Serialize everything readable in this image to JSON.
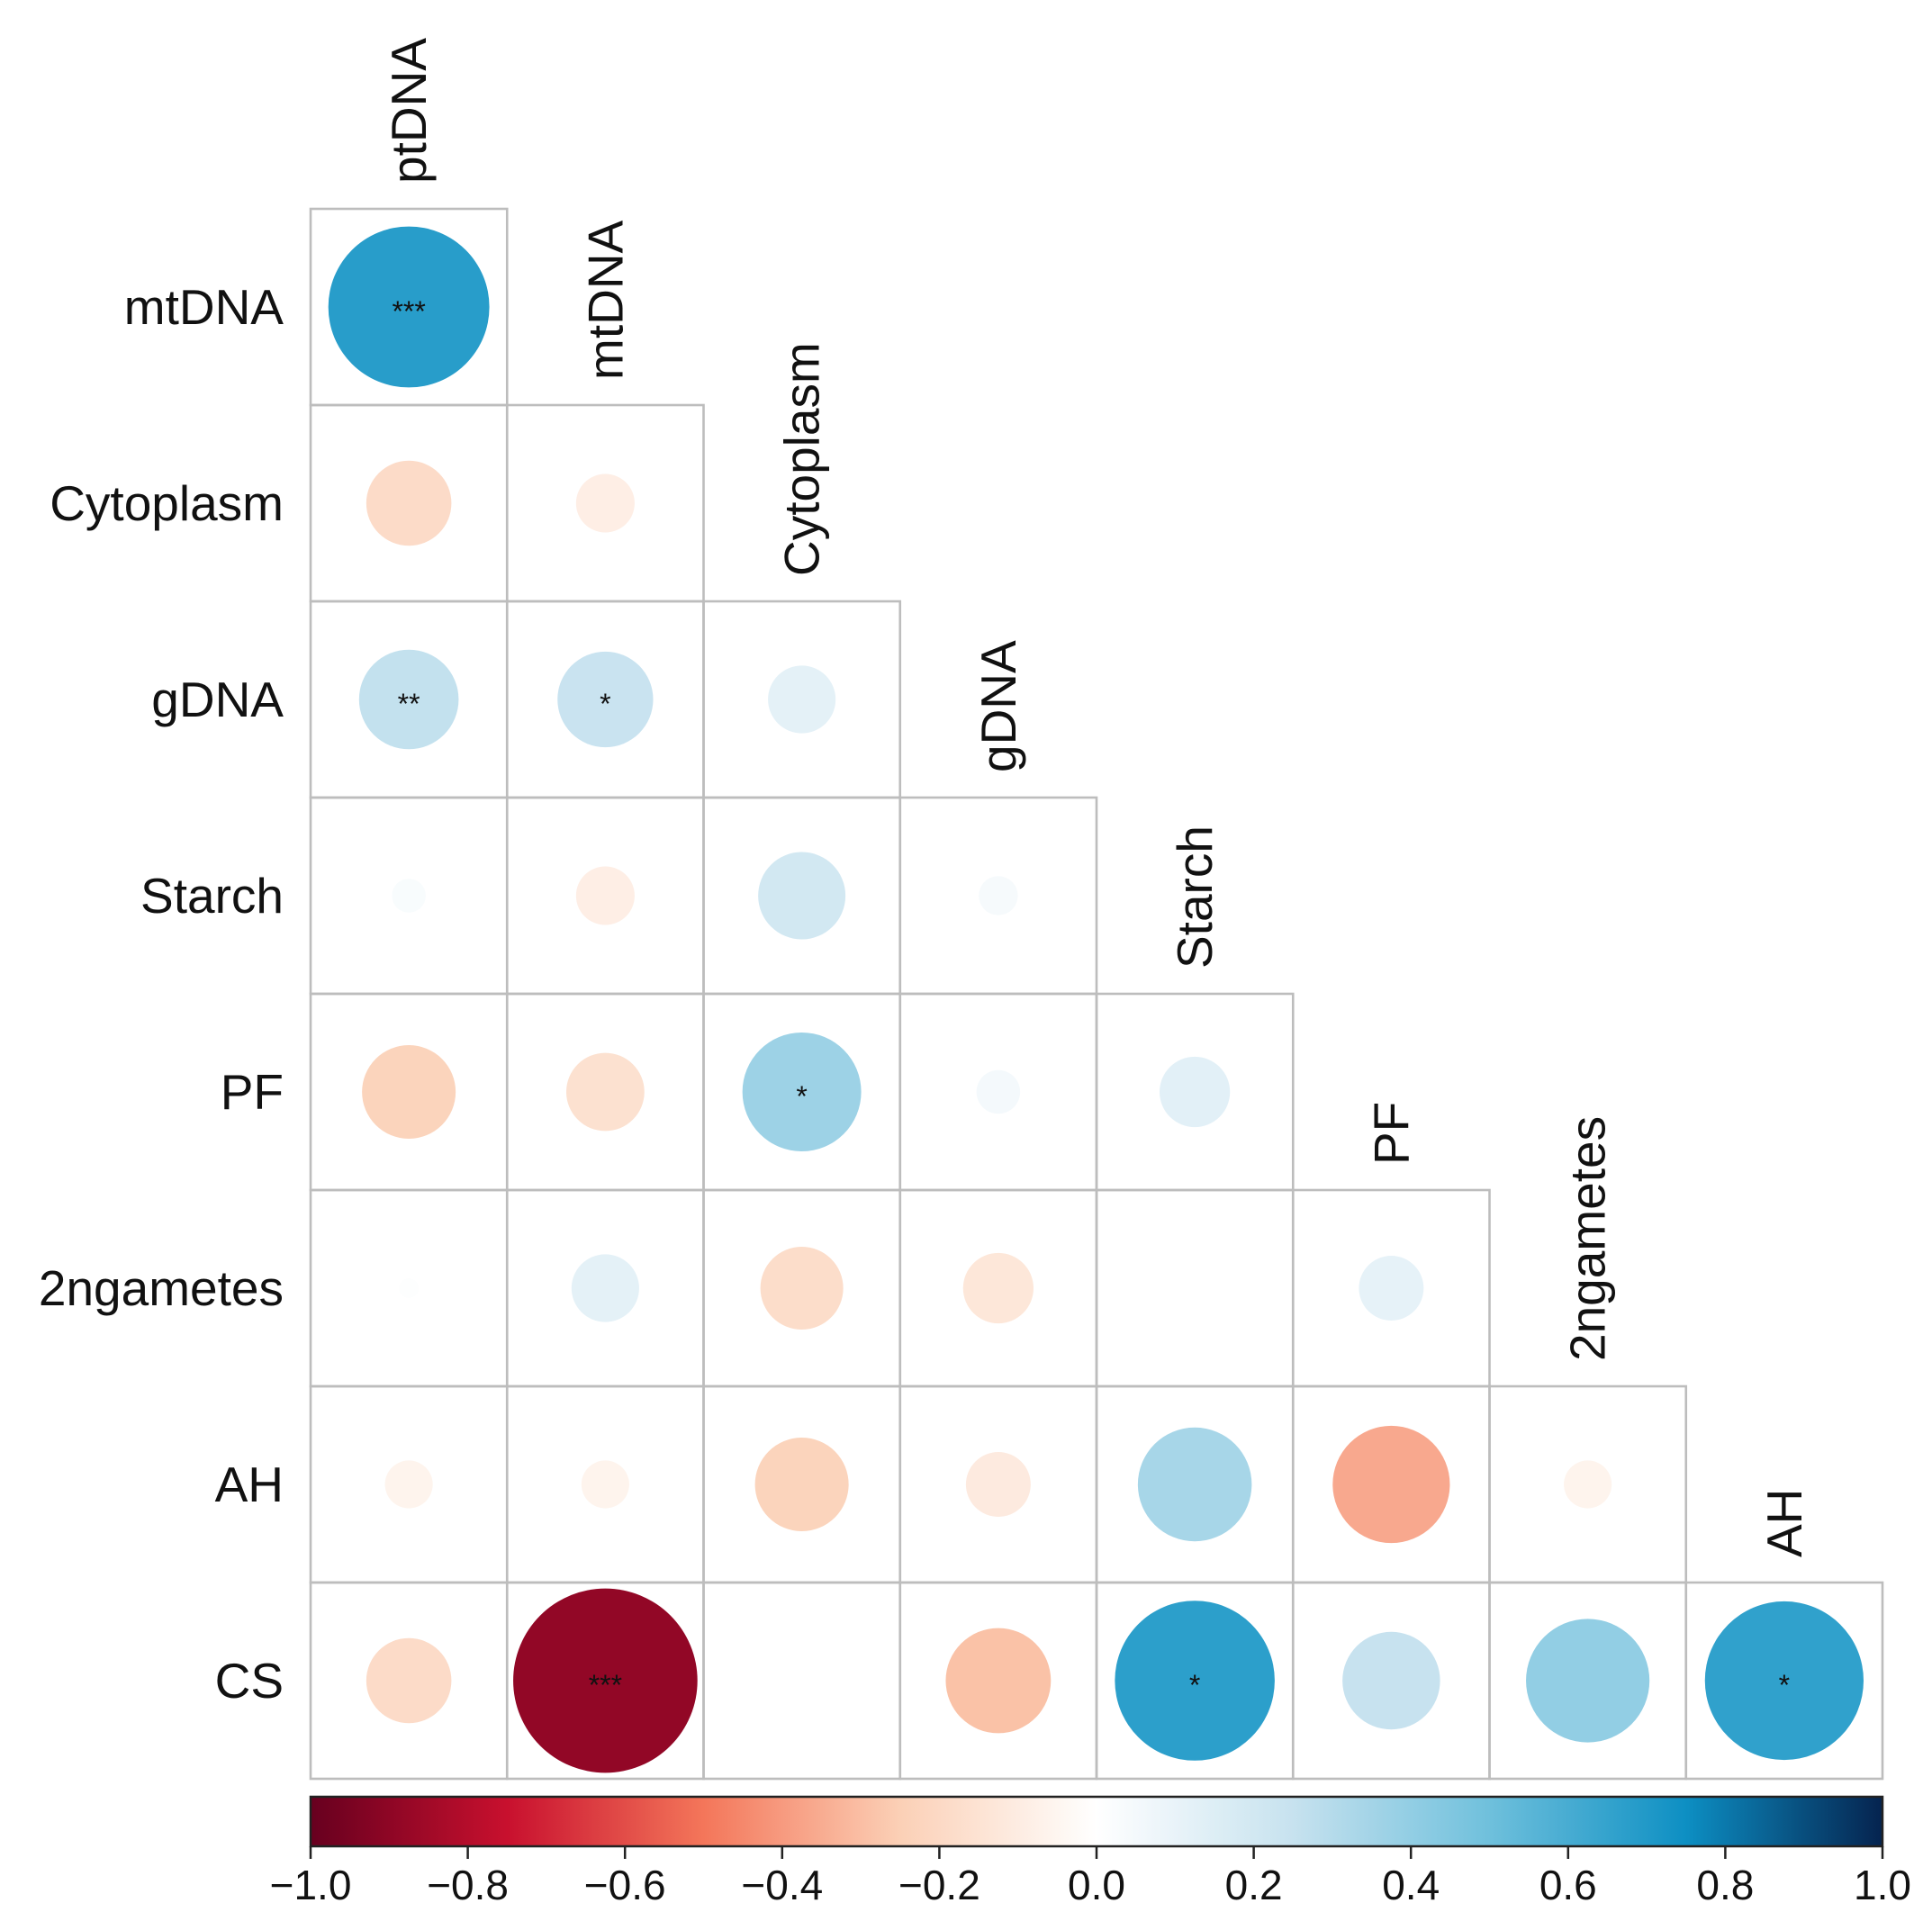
{
  "chart_data": {
    "type": "heatmap",
    "style": "correlation circle plot, lower triangle",
    "variables": [
      "ptDNA",
      "mtDNA",
      "Cytoplasm",
      "gDNA",
      "Starch",
      "PF",
      "2ngametes",
      "AH",
      "CS"
    ],
    "row_labels": [
      "mtDNA",
      "Cytoplasm",
      "gDNA",
      "Starch",
      "PF",
      "2ngametes",
      "AH",
      "CS"
    ],
    "column_labels": [
      "ptDNA",
      "mtDNA",
      "Cytoplasm",
      "gDNA",
      "Starch",
      "PF",
      "2ngametes",
      "AH"
    ],
    "cells": [
      {
        "row": "mtDNA",
        "col": "ptDNA",
        "r": 0.68,
        "sig": "***"
      },
      {
        "row": "Cytoplasm",
        "col": "ptDNA",
        "r": -0.19,
        "sig": ""
      },
      {
        "row": "Cytoplasm",
        "col": "mtDNA",
        "r": -0.09,
        "sig": ""
      },
      {
        "row": "gDNA",
        "col": "ptDNA",
        "r": 0.26,
        "sig": "**"
      },
      {
        "row": "gDNA",
        "col": "mtDNA",
        "r": 0.24,
        "sig": "*"
      },
      {
        "row": "gDNA",
        "col": "Cytoplasm",
        "r": 0.12,
        "sig": ""
      },
      {
        "row": "Starch",
        "col": "ptDNA",
        "r": 0.03,
        "sig": ""
      },
      {
        "row": "Starch",
        "col": "mtDNA",
        "r": -0.09,
        "sig": ""
      },
      {
        "row": "Starch",
        "col": "Cytoplasm",
        "r": 0.2,
        "sig": ""
      },
      {
        "row": "Starch",
        "col": "gDNA",
        "r": 0.04,
        "sig": ""
      },
      {
        "row": "PF",
        "col": "ptDNA",
        "r": -0.23,
        "sig": ""
      },
      {
        "row": "PF",
        "col": "mtDNA",
        "r": -0.16,
        "sig": ""
      },
      {
        "row": "PF",
        "col": "Cytoplasm",
        "r": 0.37,
        "sig": "*"
      },
      {
        "row": "PF",
        "col": "gDNA",
        "r": 0.05,
        "sig": ""
      },
      {
        "row": "PF",
        "col": "Starch",
        "r": 0.13,
        "sig": ""
      },
      {
        "row": "2ngametes",
        "col": "ptDNA",
        "r": 0.01,
        "sig": ""
      },
      {
        "row": "2ngametes",
        "col": "mtDNA",
        "r": 0.12,
        "sig": ""
      },
      {
        "row": "2ngametes",
        "col": "Cytoplasm",
        "r": -0.18,
        "sig": ""
      },
      {
        "row": "2ngametes",
        "col": "gDNA",
        "r": -0.13,
        "sig": ""
      },
      {
        "row": "2ngametes",
        "col": "Starch",
        "r": 0.0,
        "sig": ""
      },
      {
        "row": "2ngametes",
        "col": "PF",
        "r": 0.11,
        "sig": ""
      },
      {
        "row": "AH",
        "col": "ptDNA",
        "r": -0.06,
        "sig": ""
      },
      {
        "row": "AH",
        "col": "mtDNA",
        "r": -0.06,
        "sig": ""
      },
      {
        "row": "AH",
        "col": "Cytoplasm",
        "r": -0.23,
        "sig": ""
      },
      {
        "row": "AH",
        "col": "gDNA",
        "r": -0.11,
        "sig": ""
      },
      {
        "row": "AH",
        "col": "Starch",
        "r": 0.34,
        "sig": ""
      },
      {
        "row": "AH",
        "col": "PF",
        "r": -0.36,
        "sig": ""
      },
      {
        "row": "AH",
        "col": "2ngametes",
        "r": -0.06,
        "sig": ""
      },
      {
        "row": "CS",
        "col": "ptDNA",
        "r": -0.19,
        "sig": ""
      },
      {
        "row": "CS",
        "col": "mtDNA",
        "r": -0.89,
        "sig": "***"
      },
      {
        "row": "CS",
        "col": "Cytoplasm",
        "r": 0.0,
        "sig": ""
      },
      {
        "row": "CS",
        "col": "gDNA",
        "r": -0.29,
        "sig": ""
      },
      {
        "row": "CS",
        "col": "Starch",
        "r": 0.67,
        "sig": "*"
      },
      {
        "row": "CS",
        "col": "PF",
        "r": 0.25,
        "sig": ""
      },
      {
        "row": "CS",
        "col": "2ngametes",
        "r": 0.4,
        "sig": ""
      },
      {
        "row": "CS",
        "col": "AH",
        "r": 0.66,
        "sig": "*"
      }
    ],
    "colorbar": {
      "range": [
        -1.0,
        1.0
      ],
      "tick_values": [
        -1.0,
        -0.8,
        -0.6,
        -0.4,
        -0.2,
        0.0,
        0.2,
        0.4,
        0.6,
        0.8,
        1.0
      ],
      "tick_labels": [
        "−1.0",
        "−0.8",
        "−0.6",
        "−0.4",
        "−0.2",
        "0.0",
        "0.2",
        "0.4",
        "0.6",
        "0.8",
        "1.0"
      ],
      "palette_stops": [
        {
          "v": -1.0,
          "color": "#67001f"
        },
        {
          "v": -0.75,
          "color": "#c8102e"
        },
        {
          "v": -0.5,
          "color": "#f4765a"
        },
        {
          "v": -0.25,
          "color": "#fbd0b6"
        },
        {
          "v": 0.0,
          "color": "#ffffff"
        },
        {
          "v": 0.25,
          "color": "#c7e2ef"
        },
        {
          "v": 0.5,
          "color": "#6fc0dc"
        },
        {
          "v": 0.75,
          "color": "#0d8fc3"
        },
        {
          "v": 1.0,
          "color": "#05234f"
        }
      ]
    },
    "title": "",
    "xlabel": "",
    "ylabel": "",
    "legend": "colorbar at bottom"
  }
}
